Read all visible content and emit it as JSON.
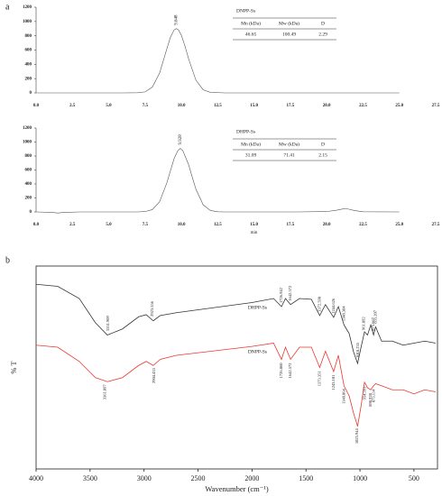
{
  "chart_data": [
    {
      "type": "line",
      "label": "a",
      "x": [
        0,
        1,
        2,
        3,
        4,
        5,
        6,
        7,
        7.5,
        8,
        8.5,
        9,
        9.25,
        9.5,
        9.648,
        9.8,
        10,
        10.25,
        10.5,
        11,
        11.5,
        12,
        13,
        15,
        17.5,
        20,
        22.5,
        25
      ],
      "series": [
        {
          "color": "#555555",
          "values": [
            0,
            0,
            0,
            0,
            0,
            0,
            0,
            2,
            14,
            80,
            278,
            618,
            781,
            882,
            900,
            882,
            807,
            653,
            474,
            178,
            43,
            7,
            0,
            0,
            0,
            0,
            0,
            0
          ],
          "peaks": [
            9.648
          ]
        }
      ],
      "xlim": [
        0,
        27.5
      ],
      "xticks": [
        {
          "value": 0,
          "label": "0.0"
        },
        {
          "value": 2.5,
          "label": "2.5"
        },
        {
          "value": 5,
          "label": "5.0"
        },
        {
          "value": 7.5,
          "label": "7.5"
        },
        {
          "value": 10,
          "label": "10.0"
        },
        {
          "value": 12.5,
          "label": "12.5"
        },
        {
          "value": 15,
          "label": "15.0"
        },
        {
          "value": 17.5,
          "label": "17.5"
        },
        {
          "value": 20,
          "label": "20.0"
        },
        {
          "value": 22.5,
          "label": "22.5"
        },
        {
          "value": 25,
          "label": "25.0"
        },
        {
          "value": 27.5,
          "label": "27.5"
        }
      ],
      "ylim": [
        0,
        1200
      ],
      "yticks": [
        0,
        200,
        400,
        600,
        800,
        1000,
        1200
      ],
      "inset_table": {
        "title": "DNPP-Ss",
        "columns": [
          "Mn (kDa)",
          "Mw (kDa)",
          "D"
        ],
        "rows": [
          [
            "46.65",
            "100.49",
            "2.29"
          ]
        ]
      }
    },
    {
      "type": "line",
      "x": [
        0,
        1,
        1.5,
        2,
        3,
        5,
        7,
        7.5,
        8,
        8.5,
        9,
        9.5,
        9.75,
        9.928,
        10.1,
        10.5,
        10.75,
        11,
        11.5,
        12,
        12.5,
        13,
        15,
        18,
        20,
        20.7,
        21.3,
        21.9,
        22.5,
        25
      ],
      "series": [
        {
          "color": "#555555",
          "values": [
            0,
            -5,
            -15,
            -5,
            0,
            0,
            0,
            5,
            33,
            146,
            417,
            764,
            874,
            910,
            877,
            674,
            495,
            325,
            101,
            20,
            3,
            0,
            0,
            0,
            5,
            25,
            50,
            20,
            3,
            0
          ],
          "peaks": [
            9.928
          ]
        }
      ],
      "xlim": [
        0,
        27.5
      ],
      "xticks": [
        {
          "value": 0,
          "label": "0.0"
        },
        {
          "value": 2.5,
          "label": "2.5"
        },
        {
          "value": 5,
          "label": "5.0"
        },
        {
          "value": 7.5,
          "label": "7.5"
        },
        {
          "value": 10,
          "label": "10.0"
        },
        {
          "value": 12.5,
          "label": "12.5"
        },
        {
          "value": 15,
          "label": "15.0"
        },
        {
          "value": 17.5,
          "label": "17.5"
        },
        {
          "value": 20,
          "label": "20.0"
        },
        {
          "value": 22.5,
          "label": "22.5"
        },
        {
          "value": 25,
          "label": "25.0"
        },
        {
          "value": 27.5,
          "label": "27.5"
        }
      ],
      "ylim": [
        0,
        1200
      ],
      "yticks": [
        0,
        200,
        400,
        600,
        800,
        1000,
        1200
      ],
      "x_label": "min",
      "inset_table": {
        "title": "DHPP-Ss",
        "columns": [
          "Mn (kDa)",
          "Mw (kDa)",
          "D"
        ],
        "rows": [
          [
            "31.09",
            "71.41",
            "2.15"
          ]
        ]
      }
    },
    {
      "type": "spectrum",
      "label": "b",
      "x": [
        4000,
        3800,
        3600,
        3450,
        3340,
        3200,
        3050,
        2980,
        2915,
        2850,
        2700,
        2000,
        1800,
        1727,
        1690,
        1643,
        1560,
        1450,
        1373,
        1320,
        1244,
        1200,
        1148,
        1100,
        1060,
        1022,
        990,
        958,
        930,
        900,
        874,
        855,
        800,
        700,
        600,
        500,
        400,
        300
      ],
      "series": [
        {
          "name": "DHPP-Ss",
          "color": "#333333",
          "values": [
            91,
            90,
            84,
            72,
            66,
            69,
            75,
            76,
            73,
            75.6,
            77,
            82,
            84,
            80,
            84,
            81,
            84,
            83.6,
            75.6,
            81,
            74.7,
            80,
            71,
            66.7,
            57.8,
            52,
            60,
            67.6,
            66,
            71,
            66,
            70,
            63,
            63,
            61,
            62,
            63,
            62
          ],
          "peaks": [
            3331.909,
            2923.356,
            1726.942,
            1642.572,
            1372.598,
            1244.626,
            1148.304,
            1018.235,
            961.892,
            875.667,
            855.207
          ]
        },
        {
          "name": "DNPP-Ss",
          "color": "#e8392f",
          "values": [
            61,
            60,
            53,
            45,
            43,
            45,
            51,
            53,
            51,
            54,
            56,
            60.4,
            62,
            54,
            60,
            54,
            60,
            60,
            50,
            58,
            48,
            56,
            41,
            36,
            27.6,
            21,
            31,
            42.7,
            40,
            39,
            41,
            42,
            41,
            39,
            39,
            37,
            39,
            38
          ],
          "peaks": [
            3361.897,
            2904.433,
            {
              "value": 1726.86,
              "label": "1726.860"
            },
            1642.572,
            1373.351,
            1243.101,
            1148.864,
            1025.944,
            954.391,
            898.928,
            873.114
          ]
        }
      ],
      "xlim": [
        4000,
        282
      ],
      "xticks": [
        4000,
        3500,
        3000,
        2500,
        2000,
        1500,
        1000,
        500
      ],
      "ylim": [
        0,
        100
      ],
      "x_label": "Wavenumber (cm⁻¹)",
      "y_label": "% T"
    }
  ]
}
